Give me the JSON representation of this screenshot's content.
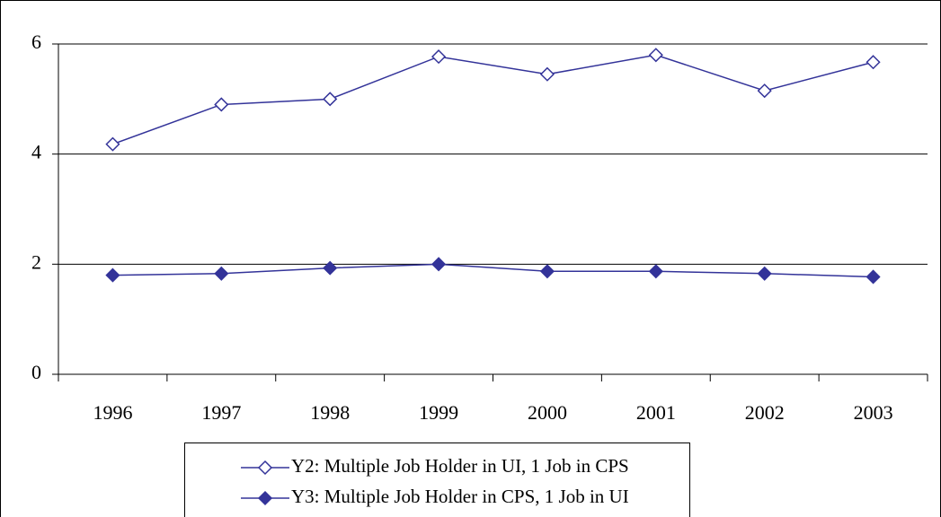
{
  "chart_data": {
    "type": "line",
    "categories": [
      "1996",
      "1997",
      "1998",
      "1999",
      "2000",
      "2001",
      "2002",
      "2003"
    ],
    "series": [
      {
        "name": "Y2: Multiple Job Holder in UI, 1 Job in CPS",
        "color": "#333399",
        "marker": "open-diamond",
        "values": [
          4.18,
          4.9,
          5.0,
          5.77,
          5.45,
          5.8,
          5.15,
          5.67
        ]
      },
      {
        "name": "Y3: Multiple Job Holder in CPS, 1 Job in UI",
        "color": "#333399",
        "marker": "filled-diamond",
        "values": [
          1.8,
          1.83,
          1.93,
          2.0,
          1.87,
          1.87,
          1.83,
          1.77
        ]
      }
    ],
    "ylim": [
      0,
      6
    ],
    "yticks": [
      0,
      2,
      4,
      6
    ],
    "grid": true,
    "legend": "bottom"
  }
}
